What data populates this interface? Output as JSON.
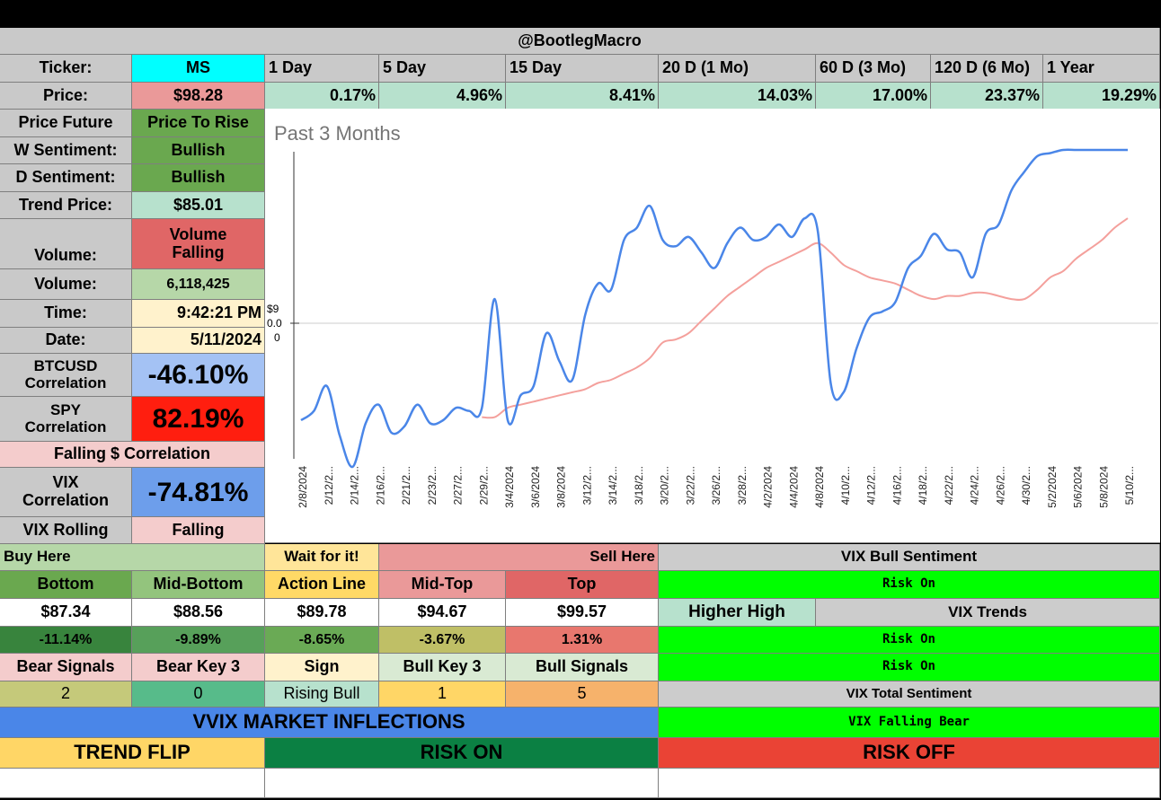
{
  "header": {
    "title": "@BootlegMacro"
  },
  "ticker": {
    "label": "Ticker:",
    "value": "MS"
  },
  "price": {
    "label": "Price:",
    "value": "$98.28"
  },
  "periods": [
    {
      "label": "1 Day",
      "change": "0.17%"
    },
    {
      "label": "5 Day",
      "change": "4.96%"
    },
    {
      "label": "15 Day",
      "change": "8.41%"
    },
    {
      "label": "20 D (1 Mo)",
      "change": "14.03%"
    },
    {
      "label": "60 D (3 Mo)",
      "change": "17.00%"
    },
    {
      "label": "120 D (6 Mo)",
      "change": "23.37%"
    },
    {
      "label": "1 Year",
      "change": "19.29%"
    }
  ],
  "stats": {
    "price_future": {
      "label": "Price Future",
      "value": "Price To Rise"
    },
    "w_sentiment": {
      "label": "W Sentiment:",
      "value": "Bullish"
    },
    "d_sentiment": {
      "label": "D Sentiment:",
      "value": "Bullish"
    },
    "trend_price": {
      "label": "Trend Price:",
      "value": "$85.01"
    },
    "volume_trend": {
      "label": "Volume:",
      "value": "Volume Falling"
    },
    "volume": {
      "label": "Volume:",
      "value": "6,118,425"
    },
    "time": {
      "label": "Time:",
      "value": "9:42:21 PM"
    },
    "date": {
      "label": "Date:",
      "value": "5/11/2024"
    },
    "btc_corr": {
      "label": "BTCUSD Correlation",
      "value": "-46.10%"
    },
    "spy_corr": {
      "label": "SPY Correlation",
      "value": "82.19%"
    },
    "falling_corr": "Falling $ Correlation",
    "vix_corr": {
      "label": "VIX Correlation",
      "value": "-74.81%"
    },
    "vix_rolling": {
      "label": "VIX Rolling",
      "value": "Falling"
    }
  },
  "levels": {
    "buy_here": "Buy Here",
    "wait": "Wait for it!",
    "sell_here": "Sell Here",
    "headers": [
      "Bottom",
      "Mid-Bottom",
      "Action Line",
      "Mid-Top",
      "Top"
    ],
    "prices": [
      "$87.34",
      "$88.56",
      "$89.78",
      "$94.67",
      "$99.57"
    ],
    "percents": [
      "-11.14%",
      "-9.89%",
      "-8.65%",
      "-3.67%",
      "1.31%"
    ],
    "signal_headers": [
      "Bear Signals",
      "Bear Key 3",
      "Sign",
      "Bull Key 3",
      "Bull Signals"
    ],
    "signal_values": [
      "2",
      "0",
      "Rising Bull",
      "1",
      "5"
    ]
  },
  "vix": {
    "bull_sentiment": "VIX Bull Sentiment",
    "risk_on_1": "Risk On",
    "higher_high": "Higher High",
    "trends": "VIX Trends",
    "risk_on_2": "Risk On",
    "risk_on_3": "Risk On",
    "total_sentiment": "VIX Total Sentiment",
    "falling_bear": "VIX Falling Bear"
  },
  "footer": {
    "vvix": "VVIX MARKET INFLECTIONS",
    "trend_flip": "TREND FLIP",
    "risk_on": "RISK ON",
    "risk_off": "RISK OFF"
  },
  "colors": {
    "price_line": "#4a86e8",
    "trend_line": "#f4a09c"
  },
  "chart_data": {
    "type": "line",
    "title": "Past 3 Months",
    "xlabel": "",
    "ylabel": "",
    "y_tick_labels": [
      "$9",
      "0.0",
      "0"
    ],
    "ylim": [
      0,
      100
    ],
    "x": [
      "2/8/2024",
      "2/9/2024",
      "2/12/2024",
      "2/13/2024",
      "2/14/2024",
      "2/15/2024",
      "2/16/2024",
      "2/20/2024",
      "2/21/2024",
      "2/22/2024",
      "2/23/2024",
      "2/26/2024",
      "2/27/2024",
      "2/28/2024",
      "2/29/2024",
      "3/1/2024",
      "3/4/2024",
      "3/5/2024",
      "3/6/2024",
      "3/7/2024",
      "3/8/2024",
      "3/11/2024",
      "3/12/2024",
      "3/13/2024",
      "3/14/2024",
      "3/15/2024",
      "3/18/2024",
      "3/19/2024",
      "3/20/2024",
      "3/21/2024",
      "3/22/2024",
      "3/25/2024",
      "3/26/2024",
      "3/27/2024",
      "3/28/2024",
      "4/1/2024",
      "4/2/2024",
      "4/3/2024",
      "4/4/2024",
      "4/5/2024",
      "4/8/2024",
      "4/9/2024",
      "4/10/2024",
      "4/11/2024",
      "4/12/2024",
      "4/15/2024",
      "4/16/2024",
      "4/17/2024",
      "4/18/2024",
      "4/19/2024",
      "4/22/2024",
      "4/23/2024",
      "4/24/2024",
      "4/25/2024",
      "4/26/2024",
      "4/29/2024",
      "4/30/2024",
      "5/1/2024",
      "5/2/2024",
      "5/3/2024",
      "5/6/2024",
      "5/7/2024",
      "5/8/2024",
      "5/9/2024",
      "5/10/2024"
    ],
    "x_tick_labels": [
      "2/8/2024",
      "2/12/2...",
      "2/14/2...",
      "2/16/2...",
      "2/21/2...",
      "2/23/2...",
      "2/27/2...",
      "2/29/2...",
      "3/4/2024",
      "3/6/2024",
      "3/8/2024",
      "3/12/2...",
      "3/14/2...",
      "3/18/2...",
      "3/20/2...",
      "3/22/2...",
      "3/26/2...",
      "3/28/2...",
      "4/2/2024",
      "4/4/2024",
      "4/8/2024",
      "4/10/2...",
      "4/12/2...",
      "4/16/2...",
      "4/18/2...",
      "4/22/2...",
      "4/24/2...",
      "4/26/2...",
      "4/30/2...",
      "5/2/2024",
      "5/6/2024",
      "5/8/2024",
      "5/10/2..."
    ],
    "series": [
      {
        "name": "Price",
        "color": "#4a86e8",
        "values": [
          13,
          16,
          24,
          8,
          -2,
          12,
          18,
          9,
          11,
          18,
          12,
          13,
          17,
          16,
          17,
          52,
          13,
          21,
          24,
          41,
          32,
          26,
          47,
          57,
          55,
          71,
          75,
          82,
          71,
          69,
          72,
          67,
          62,
          70,
          75,
          71,
          72,
          76,
          72,
          78,
          74,
          25,
          22,
          36,
          46,
          48,
          51,
          62,
          66,
          73,
          68,
          67,
          59,
          73,
          76,
          87,
          93,
          98,
          99,
          100,
          100,
          100,
          100,
          100,
          100
        ]
      },
      {
        "name": "Trend",
        "color": "#f4a09c",
        "values": [
          null,
          null,
          null,
          null,
          null,
          null,
          null,
          null,
          null,
          null,
          null,
          null,
          null,
          null,
          14,
          14,
          17,
          18,
          19,
          20,
          21,
          22,
          23,
          25,
          26,
          28,
          30,
          33,
          38,
          39,
          41,
          45,
          49,
          53,
          56,
          59,
          62,
          64,
          66,
          68,
          70,
          67,
          63,
          61,
          59,
          58,
          57,
          55,
          53,
          52,
          53,
          53,
          54,
          54,
          53,
          52,
          52,
          55,
          59,
          61,
          65,
          68,
          71,
          75,
          78
        ]
      }
    ]
  }
}
